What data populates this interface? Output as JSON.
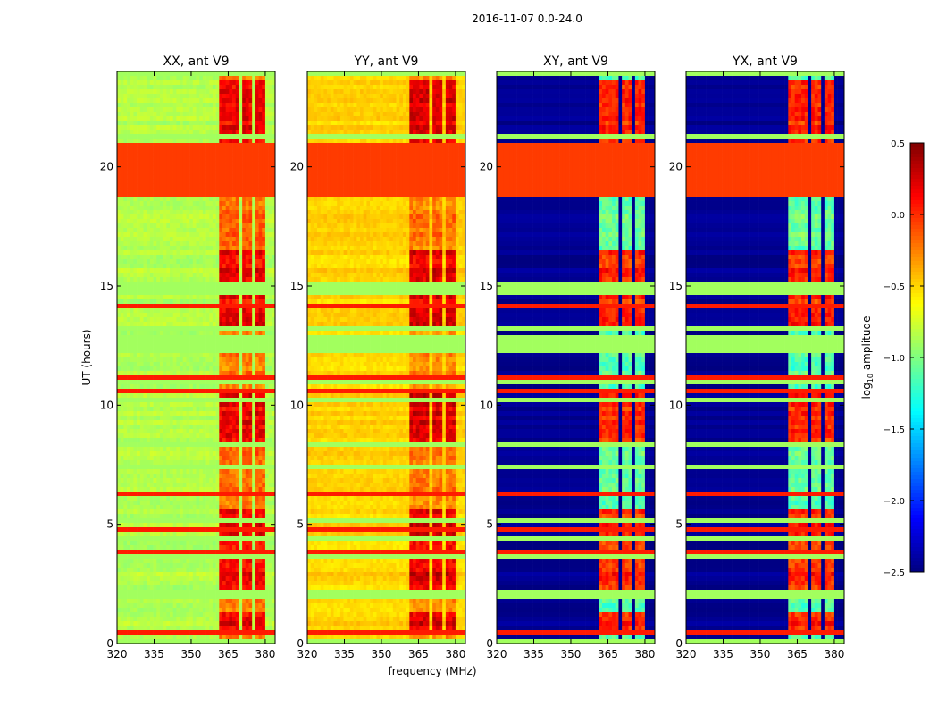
{
  "chart_data": {
    "type": "heatmap",
    "title": "2016-11-07 0.0-24.0",
    "xlabel": "frequency (MHz)",
    "ylabel": "UT (hours)",
    "xlim": [
      320,
      384
    ],
    "ylim": [
      0,
      24
    ],
    "xticks": [
      320,
      335,
      350,
      365,
      380
    ],
    "xtick_labels": [
      "320",
      "335",
      "350",
      "365",
      "380"
    ],
    "yticks": [
      0,
      5,
      10,
      15,
      20
    ],
    "ytick_labels": [
      "0",
      "5",
      "10",
      "15",
      "20"
    ],
    "colormap": "jet",
    "colorbar": {
      "label": "log10 amplitude",
      "label_main": "log",
      "label_sub": "10",
      "label_rest": " amplitude",
      "range": [
        -2.5,
        0.5
      ],
      "ticks": [
        0.5,
        0.0,
        -0.5,
        -1.0,
        -1.5,
        -2.0,
        -2.5
      ],
      "tick_labels": [
        "0.5",
        "0.0",
        "−0.5",
        "−1.0",
        "−1.5",
        "−2.0",
        "−2.5"
      ]
    },
    "band_channels_mhz": [
      [
        361,
        365
      ],
      [
        366,
        369.5
      ],
      [
        371,
        375
      ],
      [
        376,
        380
      ]
    ],
    "saturated_interval_hours": [
      18.7,
      21.0
    ],
    "hot_intervals_hours": [
      [
        0.3,
        1.3
      ],
      [
        2.2,
        5.6
      ],
      [
        8.5,
        10.5
      ],
      [
        13.3,
        16.5
      ],
      [
        20.9,
        23.6
      ]
    ],
    "panels": [
      {
        "title": "XX, ant V9",
        "background": -0.85,
        "band": -0.2,
        "hot": 0.15,
        "saturated": -0.05
      },
      {
        "title": "YY, ant V9",
        "background": -0.5,
        "band": -0.25,
        "hot": 0.2,
        "saturated": -0.05
      },
      {
        "title": "XY, ant V9",
        "background": -2.45,
        "band": -1.1,
        "hot": 0.0,
        "saturated": -0.05
      },
      {
        "title": "YX, ant V9",
        "background": -2.45,
        "band": -1.1,
        "hot": 0.0,
        "saturated": -0.05
      }
    ]
  }
}
